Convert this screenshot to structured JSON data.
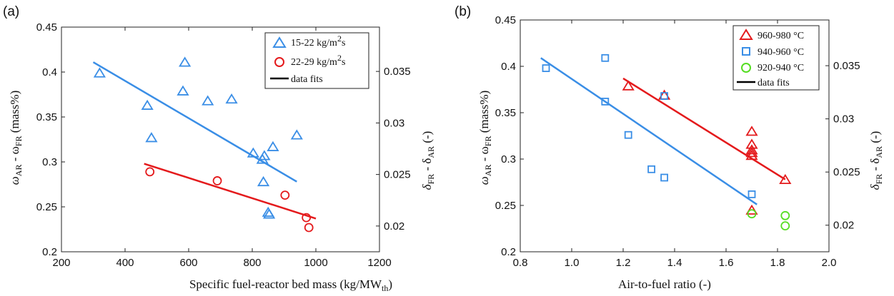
{
  "chart_data": [
    {
      "panel": "(a)",
      "type": "scatter",
      "xlabel": "Specific fuel-reactor bed mass (kg/MW",
      "xlabel_sub": "th",
      "xlabel_end": ")",
      "ylabel": "ω",
      "ylabel_sub1": "AR",
      "ylabel_mid": " - ω",
      "ylabel_sub2": "FR",
      "ylabel_end": " (mass%)",
      "y2label": "δ",
      "y2label_sub1": "FR",
      "y2label_mid": " - δ",
      "y2label_sub2": "AR",
      "y2label_end": " (-)",
      "xlim": [
        200,
        1200
      ],
      "ylim": [
        0.2,
        0.45
      ],
      "y2lim": [
        0.0175,
        0.0393
      ],
      "xticks": [
        200,
        400,
        600,
        800,
        1000,
        1200
      ],
      "yticks": [
        0.2,
        0.25,
        0.3,
        0.35,
        0.4,
        0.45
      ],
      "y2ticks": [
        0.02,
        0.025,
        0.03,
        0.035
      ],
      "xtick_labels": [
        "200",
        "400",
        "600",
        "800",
        "1000",
        "1200"
      ],
      "ytick_labels": [
        "0.2",
        "0.25",
        "0.3",
        "0.35",
        "0.4",
        "0.45"
      ],
      "y2tick_labels": [
        "0.02",
        "0.025",
        "0.03",
        "0.035"
      ],
      "legend_position": "top-right",
      "series": [
        {
          "name": "15-22 kg/m",
          "name_sup": "2",
          "name_end": "s",
          "marker": "triangle",
          "color": "#3a8ee6",
          "points": [
            [
              320,
              0.398
            ],
            [
              470,
              0.362
            ],
            [
              483,
              0.326
            ],
            [
              582,
              0.378
            ],
            [
              588,
              0.41
            ],
            [
              660,
              0.367
            ],
            [
              735,
              0.369
            ],
            [
              803,
              0.309
            ],
            [
              832,
              0.302
            ],
            [
              835,
              0.277
            ],
            [
              838,
              0.306
            ],
            [
              850,
              0.243
            ],
            [
              853,
              0.241
            ],
            [
              865,
              0.316
            ],
            [
              940,
              0.329
            ]
          ],
          "fit": [
            [
              300,
              0.411
            ],
            [
              940,
              0.278
            ]
          ]
        },
        {
          "name": "22-29 kg/m",
          "name_sup": "2",
          "name_end": "s",
          "marker": "circle",
          "color": "#e41a1c",
          "points": [
            [
              478,
              0.289
            ],
            [
              690,
              0.279
            ],
            [
              903,
              0.263
            ],
            [
              970,
              0.238
            ],
            [
              978,
              0.227
            ]
          ],
          "fit": [
            [
              460,
              0.298
            ],
            [
              1000,
              0.237
            ]
          ]
        },
        {
          "name": "data fits",
          "marker": "line",
          "color": "#000000"
        }
      ]
    },
    {
      "panel": "(b)",
      "type": "scatter",
      "xlabel": "Air-to-fuel ratio (-)",
      "ylabel": "ω",
      "ylabel_sub1": "AR",
      "ylabel_mid": " - ω",
      "ylabel_sub2": "FR",
      "ylabel_end": " (mass%)",
      "y2label": "δ",
      "y2label_sub1": "FR",
      "y2label_mid": " - δ",
      "y2label_sub2": "AR",
      "y2label_end": " (-)",
      "xlim": [
        0.8,
        2.0
      ],
      "ylim": [
        0.2,
        0.45
      ],
      "y2lim": [
        0.0175,
        0.0393
      ],
      "xticks": [
        0.8,
        1.0,
        1.2,
        1.4,
        1.6,
        1.8,
        2.0
      ],
      "yticks": [
        0.2,
        0.25,
        0.3,
        0.35,
        0.4,
        0.45
      ],
      "y2ticks": [
        0.02,
        0.025,
        0.03,
        0.035
      ],
      "xtick_labels": [
        "0.8",
        "1.0",
        "1.2",
        "1.4",
        "1.6",
        "1.8",
        "2.0"
      ],
      "ytick_labels": [
        "0.2",
        "0.25",
        "0.3",
        "0.35",
        "0.4",
        "0.45"
      ],
      "y2tick_labels": [
        "0.02",
        "0.025",
        "0.03",
        "0.035"
      ],
      "legend_position": "top-right",
      "series": [
        {
          "name": "960-980 °C",
          "marker": "triangle",
          "color": "#e41a1c",
          "points": [
            [
              1.22,
              0.378
            ],
            [
              1.36,
              0.368
            ],
            [
              1.7,
              0.329
            ],
            [
              1.7,
              0.315
            ],
            [
              1.7,
              0.309
            ],
            [
              1.7,
              0.306
            ],
            [
              1.7,
              0.303
            ],
            [
              1.7,
              0.244
            ],
            [
              1.83,
              0.277
            ]
          ],
          "fit": [
            [
              1.2,
              0.387
            ],
            [
              1.83,
              0.278
            ]
          ]
        },
        {
          "name": "940-960 °C",
          "marker": "square",
          "color": "#3a8ee6",
          "points": [
            [
              0.9,
              0.398
            ],
            [
              1.13,
              0.409
            ],
            [
              1.13,
              0.362
            ],
            [
              1.22,
              0.326
            ],
            [
              1.31,
              0.289
            ],
            [
              1.36,
              0.28
            ],
            [
              1.36,
              0.368
            ],
            [
              1.7,
              0.262
            ]
          ],
          "fit": [
            [
              0.88,
              0.409
            ],
            [
              1.72,
              0.251
            ]
          ]
        },
        {
          "name": "920-940 °C",
          "marker": "circle",
          "color": "#55dd22",
          "points": [
            [
              1.7,
              0.241
            ],
            [
              1.83,
              0.239
            ],
            [
              1.83,
              0.228
            ]
          ]
        },
        {
          "name": "data fits",
          "marker": "line",
          "color": "#000000"
        }
      ]
    }
  ]
}
